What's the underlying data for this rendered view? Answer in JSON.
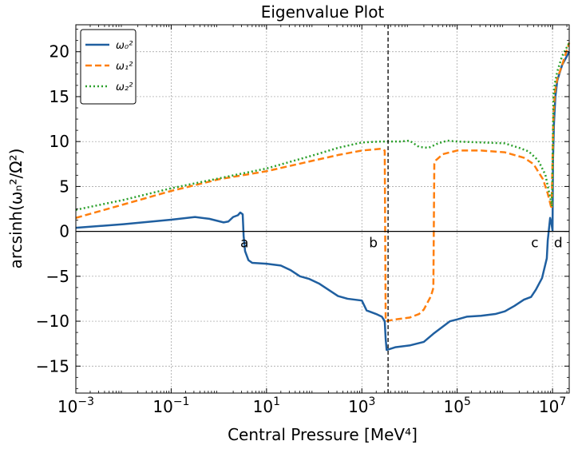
{
  "chart_data": {
    "type": "line",
    "title": "Eigenvalue Plot",
    "xlabel": "Central Pressure [MeV⁴]",
    "ylabel": "arcsinh(ωₙ²/Ω²)",
    "xscale": "log",
    "xlim_log10": [
      -3,
      7.35
    ],
    "ylim": [
      -18,
      23
    ],
    "grid": true,
    "legend_position": "top-left",
    "x_ticks": [
      {
        "log10": -3,
        "base": "10",
        "exp": "−3"
      },
      {
        "log10": -1,
        "base": "10",
        "exp": "−1"
      },
      {
        "log10": 1,
        "base": "10",
        "exp": "1"
      },
      {
        "log10": 3,
        "base": "10",
        "exp": "3"
      },
      {
        "log10": 5,
        "base": "10",
        "exp": "5"
      },
      {
        "log10": 7,
        "base": "10",
        "exp": "7"
      }
    ],
    "y_ticks": [
      {
        "value": -15,
        "label": "−15"
      },
      {
        "value": -10,
        "label": "−10"
      },
      {
        "value": -5,
        "label": "−5"
      },
      {
        "value": 0,
        "label": "0"
      },
      {
        "value": 5,
        "label": "5"
      },
      {
        "value": 10,
        "label": "10"
      },
      {
        "value": 15,
        "label": "15"
      },
      {
        "value": 20,
        "label": "20"
      }
    ],
    "vline_log10": 3.55,
    "annotations": [
      {
        "text": "a",
        "log10": 0.45,
        "y": -0.7
      },
      {
        "text": "b",
        "log10": 3.15,
        "y": -0.7
      },
      {
        "text": "c",
        "log10": 6.55,
        "y": -0.7
      },
      {
        "text": "d",
        "log10": 7.03,
        "y": -0.7
      }
    ],
    "series": [
      {
        "name": "ω₀²",
        "color": "#1f5fa0",
        "dash": "solid",
        "points": [
          [
            -3,
            0.4
          ],
          [
            -2,
            0.8
          ],
          [
            -1,
            1.3
          ],
          [
            -0.5,
            1.6
          ],
          [
            -0.2,
            1.4
          ],
          [
            0.1,
            1.0
          ],
          [
            0.2,
            1.1
          ],
          [
            0.3,
            1.6
          ],
          [
            0.4,
            1.8
          ],
          [
            0.45,
            2.1
          ],
          [
            0.5,
            1.9
          ],
          [
            0.52,
            -0.5
          ],
          [
            0.55,
            -2.2
          ],
          [
            0.62,
            -3.2
          ],
          [
            0.7,
            -3.5
          ],
          [
            1.0,
            -3.6
          ],
          [
            1.3,
            -3.8
          ],
          [
            1.5,
            -4.3
          ],
          [
            1.7,
            -5.0
          ],
          [
            1.9,
            -5.3
          ],
          [
            2.1,
            -5.8
          ],
          [
            2.3,
            -6.5
          ],
          [
            2.5,
            -7.2
          ],
          [
            2.7,
            -7.5
          ],
          [
            3.0,
            -7.7
          ],
          [
            3.1,
            -8.8
          ],
          [
            3.3,
            -9.2
          ],
          [
            3.42,
            -9.5
          ],
          [
            3.48,
            -10.0
          ],
          [
            3.5,
            -12.0
          ],
          [
            3.52,
            -13.2
          ],
          [
            3.7,
            -12.9
          ],
          [
            4.0,
            -12.7
          ],
          [
            4.3,
            -12.3
          ],
          [
            4.5,
            -11.4
          ],
          [
            4.7,
            -10.6
          ],
          [
            4.85,
            -10.0
          ],
          [
            5.0,
            -9.8
          ],
          [
            5.2,
            -9.5
          ],
          [
            5.5,
            -9.4
          ],
          [
            5.8,
            -9.2
          ],
          [
            6.0,
            -8.9
          ],
          [
            6.2,
            -8.3
          ],
          [
            6.4,
            -7.6
          ],
          [
            6.55,
            -7.3
          ],
          [
            6.65,
            -6.5
          ],
          [
            6.78,
            -5.2
          ],
          [
            6.88,
            -3.0
          ],
          [
            6.9,
            -1.0
          ],
          [
            6.95,
            1.5
          ],
          [
            6.98,
            0.8
          ],
          [
            7.0,
            0.1
          ],
          [
            7.01,
            8.0
          ],
          [
            7.03,
            12.0
          ],
          [
            7.06,
            15.0
          ],
          [
            7.1,
            16.8
          ],
          [
            7.2,
            18.5
          ],
          [
            7.35,
            20.0
          ]
        ]
      },
      {
        "name": "ω₁²",
        "color": "#ff7f0e",
        "dash": "dashed",
        "points": [
          [
            -3,
            1.5
          ],
          [
            -2,
            3.0
          ],
          [
            -1,
            4.5
          ],
          [
            0,
            5.8
          ],
          [
            1,
            6.7
          ],
          [
            2,
            7.9
          ],
          [
            2.5,
            8.5
          ],
          [
            3.0,
            9.0
          ],
          [
            3.4,
            9.2
          ],
          [
            3.48,
            9.0
          ],
          [
            3.5,
            -10.0
          ],
          [
            3.7,
            -9.8
          ],
          [
            4.0,
            -9.6
          ],
          [
            4.2,
            -9.2
          ],
          [
            4.3,
            -8.7
          ],
          [
            4.45,
            -7.2
          ],
          [
            4.5,
            -6.3
          ],
          [
            4.52,
            7.5
          ],
          [
            4.55,
            7.9
          ],
          [
            4.7,
            8.6
          ],
          [
            5.0,
            9.0
          ],
          [
            5.5,
            9.0
          ],
          [
            6.0,
            8.8
          ],
          [
            6.4,
            8.2
          ],
          [
            6.6,
            7.5
          ],
          [
            6.8,
            5.8
          ],
          [
            6.9,
            4.2
          ],
          [
            6.98,
            2.5
          ],
          [
            7.02,
            13.0
          ],
          [
            7.05,
            15.5
          ],
          [
            7.1,
            17.0
          ],
          [
            7.2,
            18.5
          ],
          [
            7.35,
            21.0
          ]
        ]
      },
      {
        "name": "ω₂²",
        "color": "#2ca02c",
        "dash": "dotted",
        "points": [
          [
            -3,
            2.4
          ],
          [
            -2,
            3.5
          ],
          [
            -1,
            4.8
          ],
          [
            0,
            5.9
          ],
          [
            1,
            7.0
          ],
          [
            2,
            8.5
          ],
          [
            2.5,
            9.3
          ],
          [
            3.0,
            9.9
          ],
          [
            3.4,
            10.0
          ],
          [
            3.6,
            10.0
          ],
          [
            3.8,
            10.0
          ],
          [
            4.0,
            10.1
          ],
          [
            4.2,
            9.4
          ],
          [
            4.4,
            9.3
          ],
          [
            4.6,
            9.8
          ],
          [
            4.8,
            10.1
          ],
          [
            5.0,
            10.0
          ],
          [
            5.5,
            9.9
          ],
          [
            6.0,
            9.8
          ],
          [
            6.3,
            9.3
          ],
          [
            6.5,
            8.9
          ],
          [
            6.7,
            7.9
          ],
          [
            6.85,
            6.3
          ],
          [
            6.95,
            3.8
          ],
          [
            6.99,
            2.8
          ],
          [
            7.02,
            15.0
          ],
          [
            7.05,
            16.5
          ],
          [
            7.1,
            17.8
          ],
          [
            7.2,
            19.5
          ],
          [
            7.35,
            21.0
          ]
        ]
      }
    ]
  }
}
